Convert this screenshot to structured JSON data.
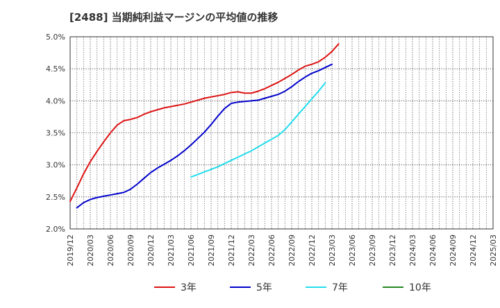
{
  "chart_data": {
    "type": "line",
    "title": "[2488]  当期純利益マージンの平均値の推移",
    "xlabel": "",
    "ylabel": "",
    "x_ticks": [
      "2019/12",
      "2020/03",
      "2020/06",
      "2020/09",
      "2020/12",
      "2021/03",
      "2021/06",
      "2021/09",
      "2021/12",
      "2022/03",
      "2022/06",
      "2022/09",
      "2022/12",
      "2023/03",
      "2023/06",
      "2023/09",
      "2023/12",
      "2024/03",
      "2024/06",
      "2024/09",
      "2024/12",
      "2025/03"
    ],
    "y_ticks": [
      "2.0%",
      "2.5%",
      "3.0%",
      "3.5%",
      "4.0%",
      "4.5%",
      "5.0%"
    ],
    "ylim": [
      2.0,
      5.0
    ],
    "y_unit": "%",
    "grid": true,
    "legend_position": "bottom",
    "series": [
      {
        "name": "3年",
        "color": "#dd1111",
        "values": [
          2.43,
          2.64,
          2.86,
          3.05,
          3.21,
          3.36,
          3.5,
          3.62,
          3.69,
          3.71,
          3.74,
          3.79,
          3.83,
          3.86,
          3.89,
          3.91,
          3.93,
          3.95,
          3.98,
          4.01,
          4.04,
          4.06,
          4.08,
          4.1,
          4.13,
          4.14,
          4.12,
          4.12,
          4.15,
          4.19,
          4.24,
          4.29,
          4.35,
          4.41,
          4.48,
          4.54,
          4.57,
          4.61,
          4.68,
          4.77,
          4.89
        ]
      },
      {
        "name": "5年",
        "color": "#0000cc",
        "values": [
          null,
          2.33,
          2.41,
          2.46,
          2.49,
          2.51,
          2.53,
          2.55,
          2.57,
          2.62,
          2.7,
          2.79,
          2.88,
          2.95,
          3.01,
          3.07,
          3.14,
          3.22,
          3.31,
          3.41,
          3.51,
          3.63,
          3.76,
          3.88,
          3.96,
          3.98,
          3.99,
          4.0,
          4.01,
          4.04,
          4.07,
          4.1,
          4.15,
          4.22,
          4.3,
          4.37,
          4.43,
          4.47,
          4.52,
          4.57
        ]
      },
      {
        "name": "7年",
        "color": "#22ddee",
        "values": [
          null,
          null,
          null,
          null,
          null,
          null,
          null,
          null,
          null,
          null,
          null,
          null,
          null,
          null,
          null,
          null,
          null,
          null,
          2.81,
          2.85,
          2.89,
          2.93,
          2.97,
          3.02,
          3.07,
          3.12,
          3.17,
          3.22,
          3.28,
          3.34,
          3.4,
          3.46,
          3.55,
          3.67,
          3.79,
          3.91,
          4.03,
          4.15,
          4.28
        ]
      },
      {
        "name": "10年",
        "color": "#228822",
        "values": []
      }
    ]
  }
}
